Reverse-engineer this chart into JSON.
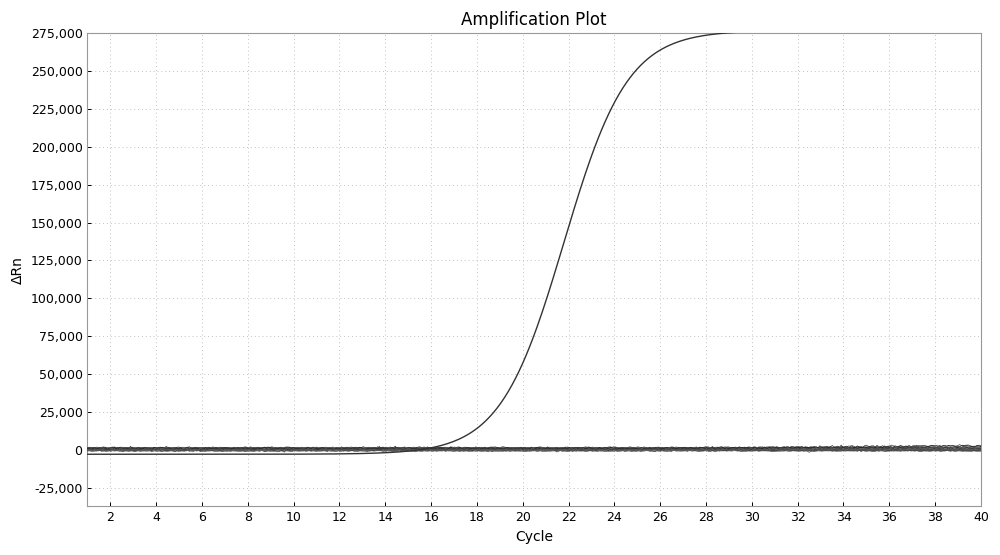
{
  "title": "Amplification Plot",
  "xlabel": "Cycle",
  "ylabel": "ΔRn",
  "xlim": [
    1,
    40
  ],
  "ylim": [
    -37500,
    275000
  ],
  "yticks": [
    -25000,
    0,
    25000,
    50000,
    75000,
    100000,
    125000,
    150000,
    175000,
    200000,
    225000,
    250000,
    275000
  ],
  "xticks": [
    2,
    4,
    6,
    8,
    10,
    12,
    14,
    16,
    18,
    20,
    22,
    24,
    26,
    28,
    30,
    32,
    34,
    36,
    38,
    40
  ],
  "background_color": "#ffffff",
  "plot_bg_color": "#ffffff",
  "grid_color": "#bbbbbb",
  "title_fontsize": 12,
  "axis_label_fontsize": 10,
  "tick_fontsize": 9,
  "main_curve_color": "#333333",
  "num_flat_curves": 20
}
